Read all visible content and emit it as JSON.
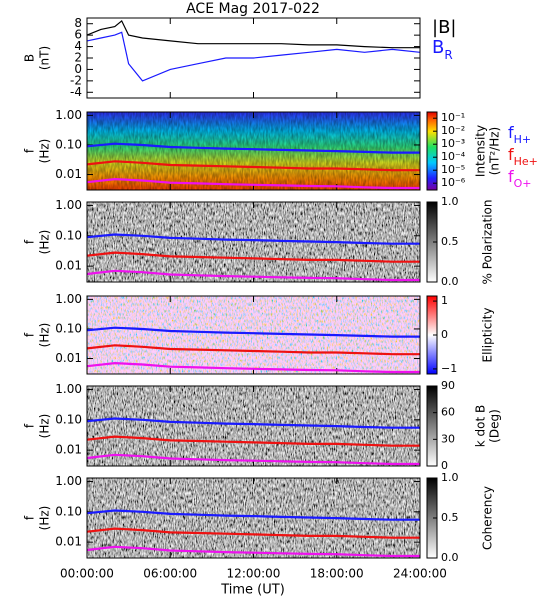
{
  "title": "ACE Mag 2017-022",
  "xlabel": "Time (UT)",
  "xlim": [
    0,
    24
  ],
  "xticks": [
    {
      "value": 0,
      "label": "00:00:00"
    },
    {
      "value": 6,
      "label": "06:00:00"
    },
    {
      "value": 12,
      "label": "12:00:00"
    },
    {
      "value": 18,
      "label": "18:00:00"
    },
    {
      "value": 24,
      "label": "24:00:00"
    }
  ],
  "chart_data": [
    {
      "type": "line",
      "ylabel": [
        "B",
        "(nT)"
      ],
      "ylim": [
        -5,
        9
      ],
      "yticks": [
        -4,
        -2,
        0,
        2,
        4,
        6,
        8
      ],
      "x": [
        0,
        1,
        2,
        2.5,
        3,
        4,
        6,
        8,
        10,
        12,
        14,
        16,
        18,
        20,
        22,
        24
      ],
      "series": [
        {
          "name": "|B|",
          "color": "#000000",
          "values": [
            6,
            7,
            7.5,
            8.5,
            6,
            5.5,
            5,
            4.5,
            4.5,
            4.5,
            4.5,
            4.3,
            4.3,
            4,
            3.8,
            3.8
          ]
        },
        {
          "name": "BR",
          "color": "#1a1aff",
          "values": [
            5,
            5.5,
            6,
            6.5,
            1,
            -2,
            0,
            1,
            2,
            2,
            2.5,
            3,
            3.5,
            3,
            3.5,
            3
          ]
        }
      ]
    },
    {
      "type": "spectrogram",
      "colormap": "jet",
      "ylabel": [
        "f",
        "(Hz)"
      ],
      "ylim": [
        0.003,
        1.3
      ],
      "log_y": true,
      "yticks": [
        {
          "value": 1,
          "label": "1.00"
        },
        {
          "value": 0.1,
          "label": "0.10"
        },
        {
          "value": 0.01,
          "label": "0.01"
        }
      ],
      "colorbar_label": [
        "Intensity",
        "(nT²/Hz)"
      ],
      "clim": [
        3e-07,
        0.3
      ],
      "log_c": true,
      "cticks": [
        {
          "value": 0.1,
          "label": "10⁻¹"
        },
        {
          "value": 0.01,
          "label": "10⁻²"
        },
        {
          "value": 0.001,
          "label": "10⁻³"
        },
        {
          "value": 0.0001,
          "label": "10⁻⁴"
        },
        {
          "value": 1e-05,
          "label": "10⁻⁵"
        },
        {
          "value": 1e-06,
          "label": "10⁻⁶"
        }
      ],
      "x": [
        0,
        2,
        4,
        6,
        8,
        10,
        12,
        14,
        16,
        18,
        20,
        22,
        24
      ],
      "series": [
        {
          "name": "fH+",
          "color": "#1a1aff",
          "values": [
            0.09,
            0.11,
            0.1,
            0.085,
            0.08,
            0.075,
            0.072,
            0.068,
            0.065,
            0.062,
            0.058,
            0.055,
            0.055
          ]
        },
        {
          "name": "fHe+",
          "color": "#ee1111",
          "values": [
            0.022,
            0.028,
            0.025,
            0.021,
            0.02,
            0.019,
            0.018,
            0.017,
            0.016,
            0.016,
            0.015,
            0.014,
            0.014
          ]
        },
        {
          "name": "fO+",
          "color": "#ee11ee",
          "values": [
            0.0055,
            0.007,
            0.0063,
            0.0053,
            0.005,
            0.0047,
            0.0045,
            0.0043,
            0.0041,
            0.004,
            0.0037,
            0.0035,
            0.0035
          ]
        }
      ]
    },
    {
      "type": "spectrogram",
      "colormap": "gray",
      "ylabel": [
        "f",
        "(Hz)"
      ],
      "ylim": [
        0.003,
        1.3
      ],
      "log_y": true,
      "yticks": [
        {
          "value": 1,
          "label": "1.00"
        },
        {
          "value": 0.1,
          "label": "0.10"
        },
        {
          "value": 0.01,
          "label": "0.01"
        }
      ],
      "colorbar_label": [
        "% Polarization"
      ],
      "clim": [
        0,
        1
      ],
      "cticks": [
        {
          "value": 0,
          "label": "0.0"
        },
        {
          "value": 0.5,
          "label": "0.5"
        },
        {
          "value": 1,
          "label": "1.0"
        }
      ],
      "x": [
        0,
        2,
        4,
        6,
        8,
        10,
        12,
        14,
        16,
        18,
        20,
        22,
        24
      ],
      "series": [
        {
          "color": "#1a1aff",
          "values": [
            0.09,
            0.11,
            0.1,
            0.085,
            0.08,
            0.075,
            0.072,
            0.068,
            0.065,
            0.062,
            0.058,
            0.055,
            0.055
          ]
        },
        {
          "color": "#ee1111",
          "values": [
            0.022,
            0.028,
            0.025,
            0.021,
            0.02,
            0.019,
            0.018,
            0.017,
            0.016,
            0.016,
            0.015,
            0.014,
            0.014
          ]
        },
        {
          "color": "#ee11ee",
          "values": [
            0.0055,
            0.007,
            0.0063,
            0.0053,
            0.005,
            0.0047,
            0.0045,
            0.0043,
            0.0041,
            0.004,
            0.0037,
            0.0035,
            0.0035
          ]
        }
      ]
    },
    {
      "type": "spectrogram",
      "colormap": "bwr",
      "ylabel": [
        "f",
        "(Hz)"
      ],
      "ylim": [
        0.003,
        1.3
      ],
      "log_y": true,
      "yticks": [
        {
          "value": 1,
          "label": "1.00"
        },
        {
          "value": 0.1,
          "label": "0.10"
        },
        {
          "value": 0.01,
          "label": "0.01"
        }
      ],
      "colorbar_label": [
        "Ellipticity"
      ],
      "clim": [
        -1.15,
        1.15
      ],
      "cticks": [
        {
          "value": 1,
          "label": "1"
        },
        {
          "value": 0,
          "label": "0"
        },
        {
          "value": -1,
          "label": "−1"
        }
      ],
      "x": [
        0,
        2,
        4,
        6,
        8,
        10,
        12,
        14,
        16,
        18,
        20,
        22,
        24
      ],
      "series": [
        {
          "color": "#1a1aff",
          "values": [
            0.09,
            0.11,
            0.1,
            0.085,
            0.08,
            0.075,
            0.072,
            0.068,
            0.065,
            0.062,
            0.058,
            0.055,
            0.055
          ]
        },
        {
          "color": "#ee1111",
          "values": [
            0.022,
            0.028,
            0.025,
            0.021,
            0.02,
            0.019,
            0.018,
            0.017,
            0.016,
            0.016,
            0.015,
            0.014,
            0.014
          ]
        },
        {
          "color": "#ee11ee",
          "values": [
            0.0055,
            0.007,
            0.0063,
            0.0053,
            0.005,
            0.0047,
            0.0045,
            0.0043,
            0.0041,
            0.004,
            0.0037,
            0.0035,
            0.0035
          ]
        }
      ]
    },
    {
      "type": "spectrogram",
      "colormap": "gray",
      "ylabel": [
        "f",
        "(Hz)"
      ],
      "ylim": [
        0.003,
        1.3
      ],
      "log_y": true,
      "yticks": [
        {
          "value": 1,
          "label": "1.00"
        },
        {
          "value": 0.1,
          "label": "0.10"
        },
        {
          "value": 0.01,
          "label": "0.01"
        }
      ],
      "colorbar_label": [
        "k dot B",
        "(Deg)"
      ],
      "clim": [
        0,
        90
      ],
      "cticks": [
        0,
        30,
        60,
        90
      ],
      "x": [
        0,
        2,
        4,
        6,
        8,
        10,
        12,
        14,
        16,
        18,
        20,
        22,
        24
      ],
      "series": [
        {
          "color": "#1a1aff",
          "values": [
            0.09,
            0.11,
            0.1,
            0.085,
            0.08,
            0.075,
            0.072,
            0.068,
            0.065,
            0.062,
            0.058,
            0.055,
            0.055
          ]
        },
        {
          "color": "#ee1111",
          "values": [
            0.022,
            0.028,
            0.025,
            0.021,
            0.02,
            0.019,
            0.018,
            0.017,
            0.016,
            0.016,
            0.015,
            0.014,
            0.014
          ]
        },
        {
          "color": "#ee11ee",
          "values": [
            0.0055,
            0.007,
            0.0063,
            0.0053,
            0.005,
            0.0047,
            0.0045,
            0.0043,
            0.0041,
            0.004,
            0.0037,
            0.0035,
            0.0035
          ]
        }
      ]
    },
    {
      "type": "spectrogram",
      "colormap": "gray",
      "ylabel": [
        "f",
        "(Hz)"
      ],
      "ylim": [
        0.003,
        1.3
      ],
      "log_y": true,
      "yticks": [
        {
          "value": 1,
          "label": "1.00"
        },
        {
          "value": 0.1,
          "label": "0.10"
        },
        {
          "value": 0.01,
          "label": "0.01"
        }
      ],
      "colorbar_label": [
        "Coherency"
      ],
      "clim": [
        0,
        1
      ],
      "cticks": [
        {
          "value": 0,
          "label": "0.0"
        },
        {
          "value": 0.5,
          "label": "0.5"
        },
        {
          "value": 1,
          "label": "1.0"
        }
      ],
      "x": [
        0,
        2,
        4,
        6,
        8,
        10,
        12,
        14,
        16,
        18,
        20,
        22,
        24
      ],
      "series": [
        {
          "color": "#1a1aff",
          "values": [
            0.09,
            0.11,
            0.1,
            0.085,
            0.08,
            0.075,
            0.072,
            0.068,
            0.065,
            0.062,
            0.058,
            0.055,
            0.055
          ]
        },
        {
          "color": "#ee1111",
          "values": [
            0.022,
            0.028,
            0.025,
            0.021,
            0.02,
            0.019,
            0.018,
            0.017,
            0.016,
            0.016,
            0.015,
            0.014,
            0.014
          ]
        },
        {
          "color": "#ee11ee",
          "values": [
            0.0055,
            0.007,
            0.0063,
            0.0053,
            0.005,
            0.0047,
            0.0045,
            0.0043,
            0.0041,
            0.004,
            0.0037,
            0.0035,
            0.0035
          ]
        }
      ]
    }
  ]
}
